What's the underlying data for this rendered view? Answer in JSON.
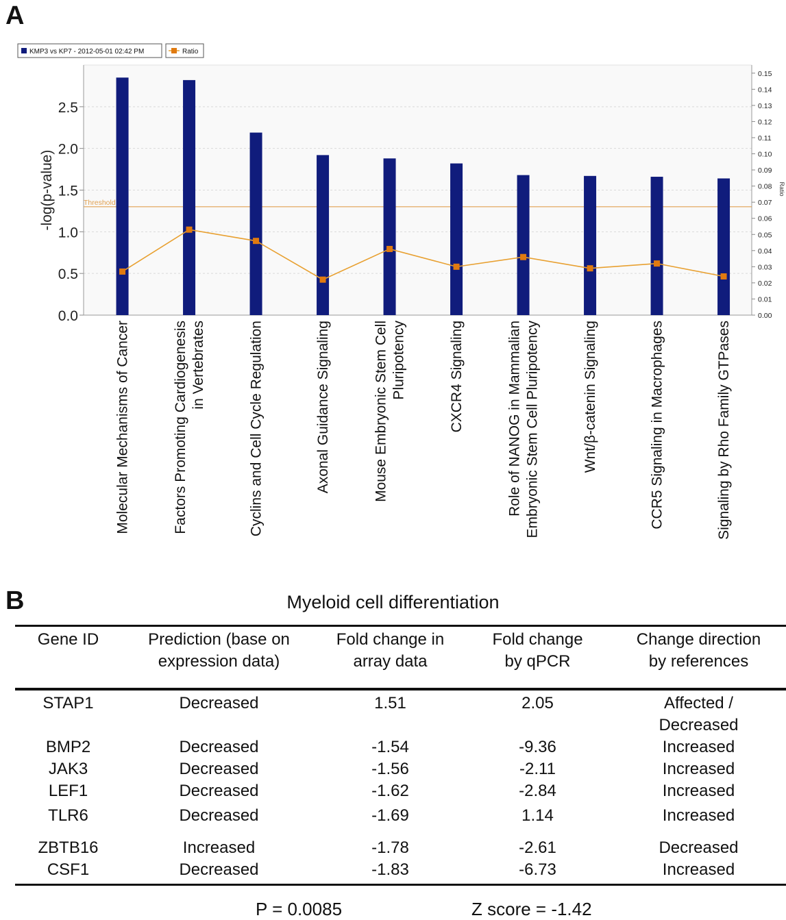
{
  "panels": {
    "a": "A",
    "b": "B"
  },
  "chart_data": {
    "type": "bar",
    "legend": {
      "series": "KMP3 vs KP7 - 2012-05-01 02:42 PM",
      "ratio": "Ratio",
      "position": "top-left"
    },
    "categories": [
      "Molecular Mechanisms of Cancer",
      "Factors Promoting Cardiogenesis in Vertebrates",
      "Cyclins and Cell Cycle Regulation",
      "Axonal Guidance Signaling",
      "Mouse Embryonic Stem Cell Pluripotency",
      "CXCR4 Signaling",
      "Role of NANOG in Mammalian Embryonic Stem Cell Pluripotency",
      "Wnt/β-catenin Signaling",
      "CCR5 Signaling in Macrophages",
      "Signaling by Rho Family GTPases"
    ],
    "category_lines": [
      [
        "Molecular Mechanisms of Cancer"
      ],
      [
        "Factors Promoting Cardiogenesis",
        "in Vertebrates"
      ],
      [
        "Cyclins and Cell Cycle Regulation"
      ],
      [
        "Axonal Guidance Signaling"
      ],
      [
        "Mouse Embryonic Stem Cell",
        "Pluripotency"
      ],
      [
        "CXCR4 Signaling"
      ],
      [
        "Role of NANOG in Mammalian",
        "Embryonic Stem Cell Pluripotency"
      ],
      [
        "Wnt/β-catenin Signaling"
      ],
      [
        "CCR5 Signaling in Macrophages"
      ],
      [
        "Signaling by Rho Family GTPases"
      ]
    ],
    "series": [
      {
        "name": "KMP3 vs KP7 - 2012-05-01 02:42 PM",
        "axis": "left",
        "values": [
          2.85,
          2.82,
          2.19,
          1.92,
          1.88,
          1.82,
          1.68,
          1.67,
          1.66,
          1.64
        ]
      },
      {
        "name": "Ratio",
        "axis": "right",
        "values": [
          0.027,
          0.053,
          0.046,
          0.022,
          0.041,
          0.03,
          0.036,
          0.029,
          0.032,
          0.024
        ]
      }
    ],
    "threshold": {
      "label": "Threshold",
      "value": 1.3
    },
    "ylabel": "-log(p-value)",
    "ylim": [
      0,
      3.0
    ],
    "yticks": [
      "0.0",
      "0.5",
      "1.0",
      "1.5",
      "2.0",
      "2.5"
    ],
    "y2label": "Ratio",
    "y2ticks": [
      "0.00",
      "0.01",
      "0.02",
      "0.03",
      "0.04",
      "0.05",
      "0.06",
      "0.07",
      "0.08",
      "0.09",
      "0.10",
      "0.11",
      "0.12",
      "0.13",
      "0.14",
      "0.15"
    ],
    "grid": true,
    "colors": {
      "bar": "#101c7c",
      "ratio": "#e8a030",
      "ratio_marker": "#e07a10",
      "threshold": "#e0a050"
    }
  },
  "table": {
    "title": "Myeloid cell differentiation",
    "headers": [
      [
        "Gene ID"
      ],
      [
        "Prediction (base on",
        "expression data)"
      ],
      [
        "Fold change in",
        "array data"
      ],
      [
        "Fold change",
        "by qPCR"
      ],
      [
        "Change direction",
        "by references"
      ]
    ],
    "rows": [
      {
        "gene": "STAP1",
        "prediction": "Decreased",
        "array": "1.51",
        "qpcr": "2.05",
        "reference": [
          "Affected /",
          "Decreased"
        ]
      },
      {
        "gene": "BMP2",
        "prediction": "Decreased",
        "array": "-1.54",
        "qpcr": "-9.36",
        "reference": [
          "Increased"
        ]
      },
      {
        "gene": "JAK3",
        "prediction": "Decreased",
        "array": "-1.56",
        "qpcr": "-2.11",
        "reference": [
          "Increased"
        ]
      },
      {
        "gene": "LEF1",
        "prediction": "Decreased",
        "array": "-1.62",
        "qpcr": "-2.84",
        "reference": [
          "Increased"
        ]
      },
      {
        "gene": "TLR6",
        "prediction": "Decreased",
        "array": "-1.69",
        "qpcr": "1.14",
        "reference": [
          "Increased"
        ]
      },
      {
        "gene": "ZBTB16",
        "prediction": "Increased",
        "array": "-1.78",
        "qpcr": "-2.61",
        "reference": [
          "Decreased"
        ]
      },
      {
        "gene": "CSF1",
        "prediction": "Decreased",
        "array": "-1.83",
        "qpcr": "-6.73",
        "reference": [
          "Increased"
        ]
      }
    ],
    "p_value": "P = 0.0085",
    "z_score": "Z score = -1.42"
  }
}
